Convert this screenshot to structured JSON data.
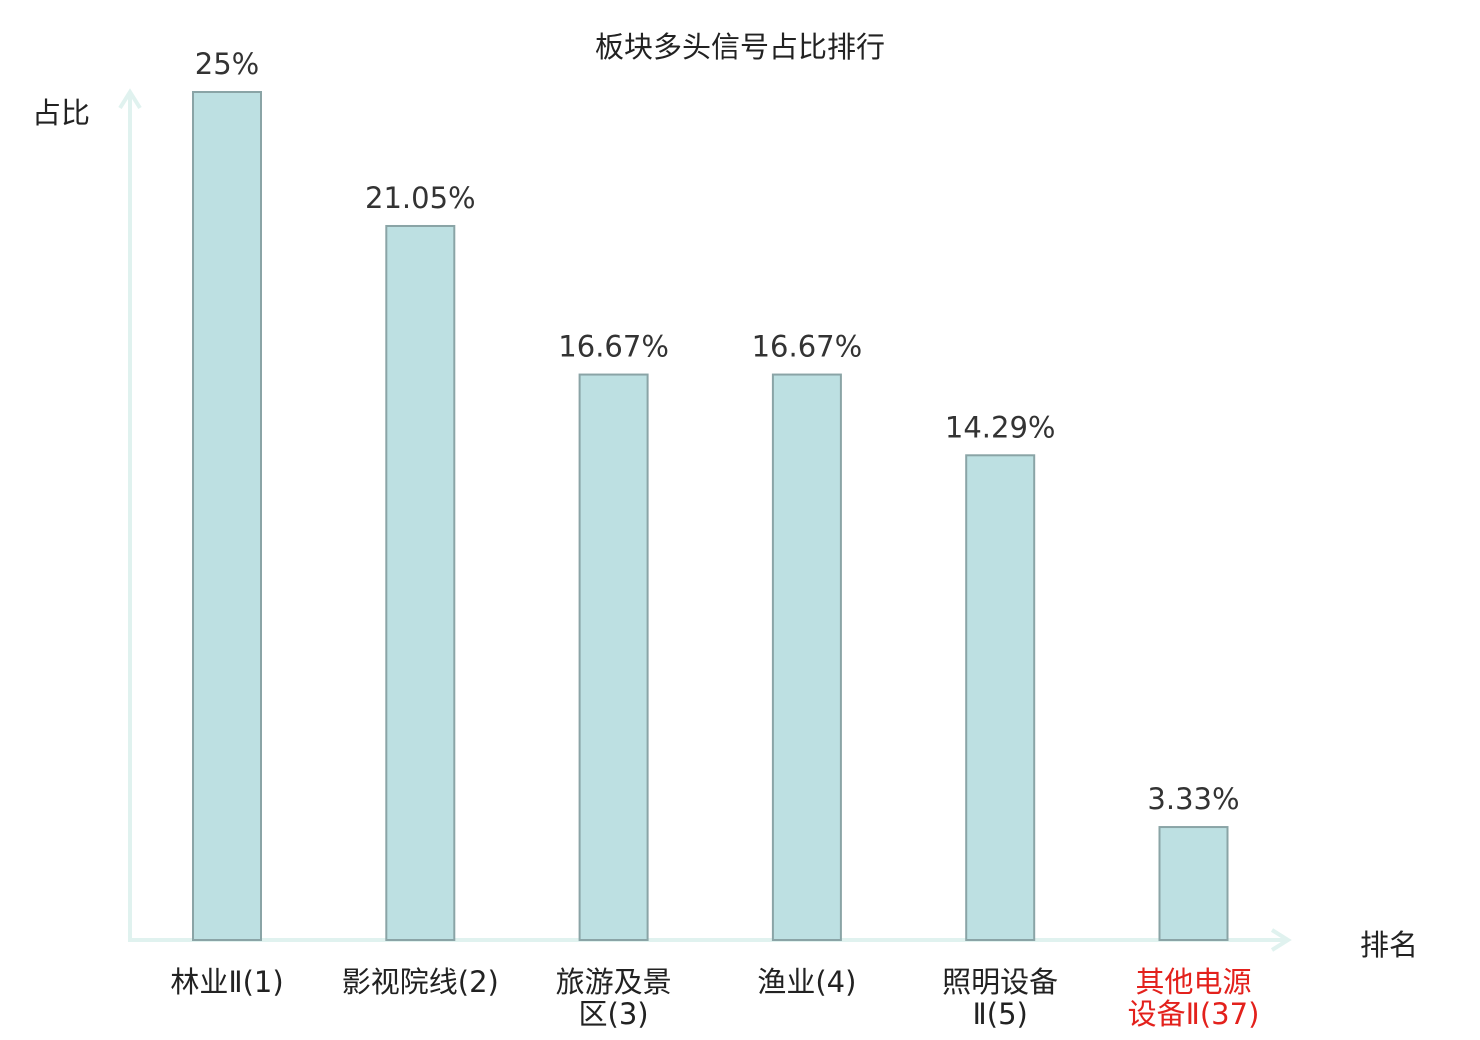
{
  "chart_data": {
    "type": "bar",
    "title": "板块多头信号占比排行",
    "ylabel": "占比",
    "xlabel": "排名",
    "categories": [
      "林业Ⅱ(1)",
      "影视院线(2)",
      "旅游及景\n区(3)",
      "渔业(4)",
      "照明设备\nⅡ(5)",
      "其他电源\n设备Ⅱ(37)"
    ],
    "values": [
      25,
      21.05,
      16.67,
      16.67,
      14.29,
      3.33
    ],
    "value_labels": [
      "25%",
      "21.05%",
      "16.67%",
      "16.67%",
      "14.29%",
      "3.33%"
    ],
    "ylim": [
      0,
      25
    ],
    "grid": false,
    "highlighted_category_index": 5,
    "colors": {
      "bar_fill": "#bde0e2",
      "bar_stroke": "#8aa4a6",
      "axis": "#e0f2ef",
      "highlight_text": "#e3211c",
      "text": "#222222"
    }
  }
}
